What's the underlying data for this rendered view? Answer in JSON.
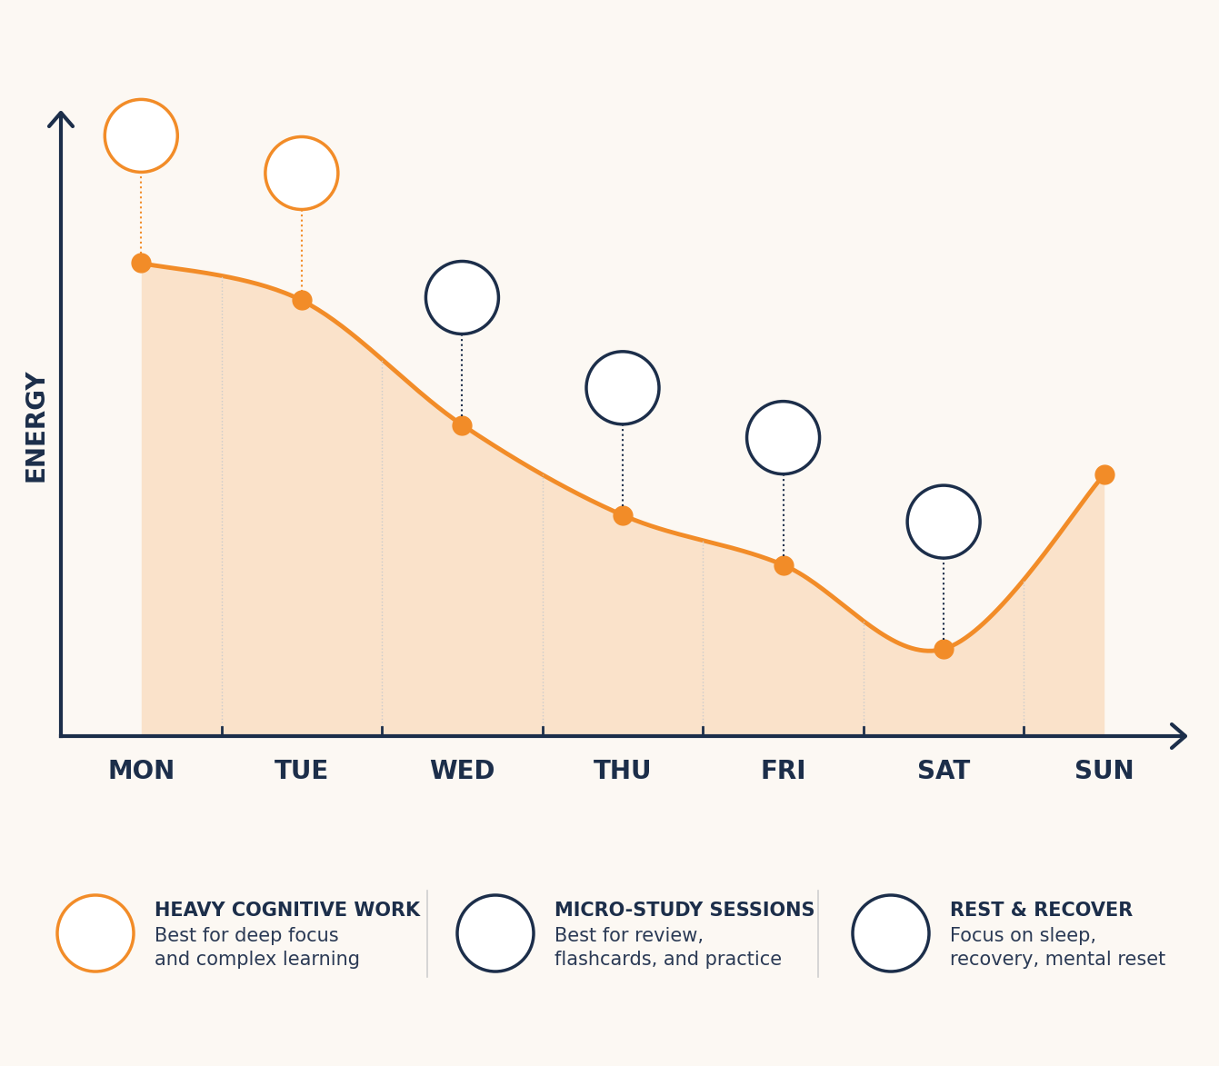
{
  "chart_data": {
    "type": "area",
    "y_label": "ENERGY",
    "categories": [
      "MON",
      "TUE",
      "WED",
      "THU",
      "FRI",
      "SAT",
      "SUN"
    ],
    "values": [
      76,
      70,
      50,
      35.5,
      27.5,
      14,
      42
    ],
    "color": "#f28c28",
    "marker": "o",
    "ylim": [
      0,
      100
    ],
    "yticks": [],
    "tick_labels": "x",
    "activities": [
      {
        "title": "HEAVY COGNITIVE WORK",
        "text": "Best for deep focus\nand complex learning",
        "days": [
          "MON",
          "TUE"
        ],
        "color": "#f28c28"
      },
      {
        "title": "MICRO-STUDY SESSIONS",
        "text": "Best for review,\nflashcards, and practice",
        "days": [
          "WED",
          "THU",
          "FRI"
        ],
        "color": "#1c2e4a"
      },
      {
        "title": "REST & RECOVER",
        "text": "Focus on sleep,\nrecovery, mental reset",
        "days": [
          "SAT"
        ],
        "color": "#1c2e4a"
      }
    ]
  }
}
